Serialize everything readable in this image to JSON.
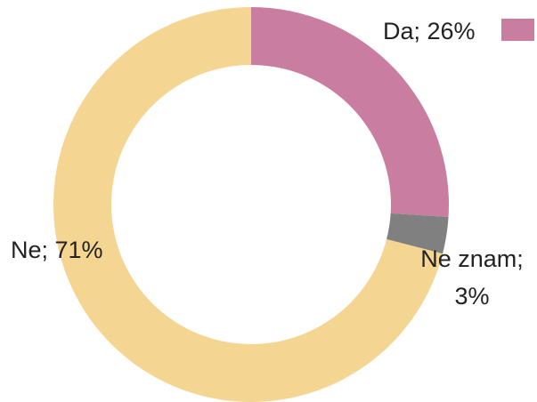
{
  "chart_data": {
    "type": "pie",
    "donut": true,
    "labels": [
      "Da; 26%",
      "Ne znam; 3%",
      "Ne; 71%"
    ],
    "values": [
      26,
      3,
      71
    ],
    "colors": [
      "#c97da0",
      "#808080",
      "#f5d592"
    ],
    "legend": "top-right"
  }
}
